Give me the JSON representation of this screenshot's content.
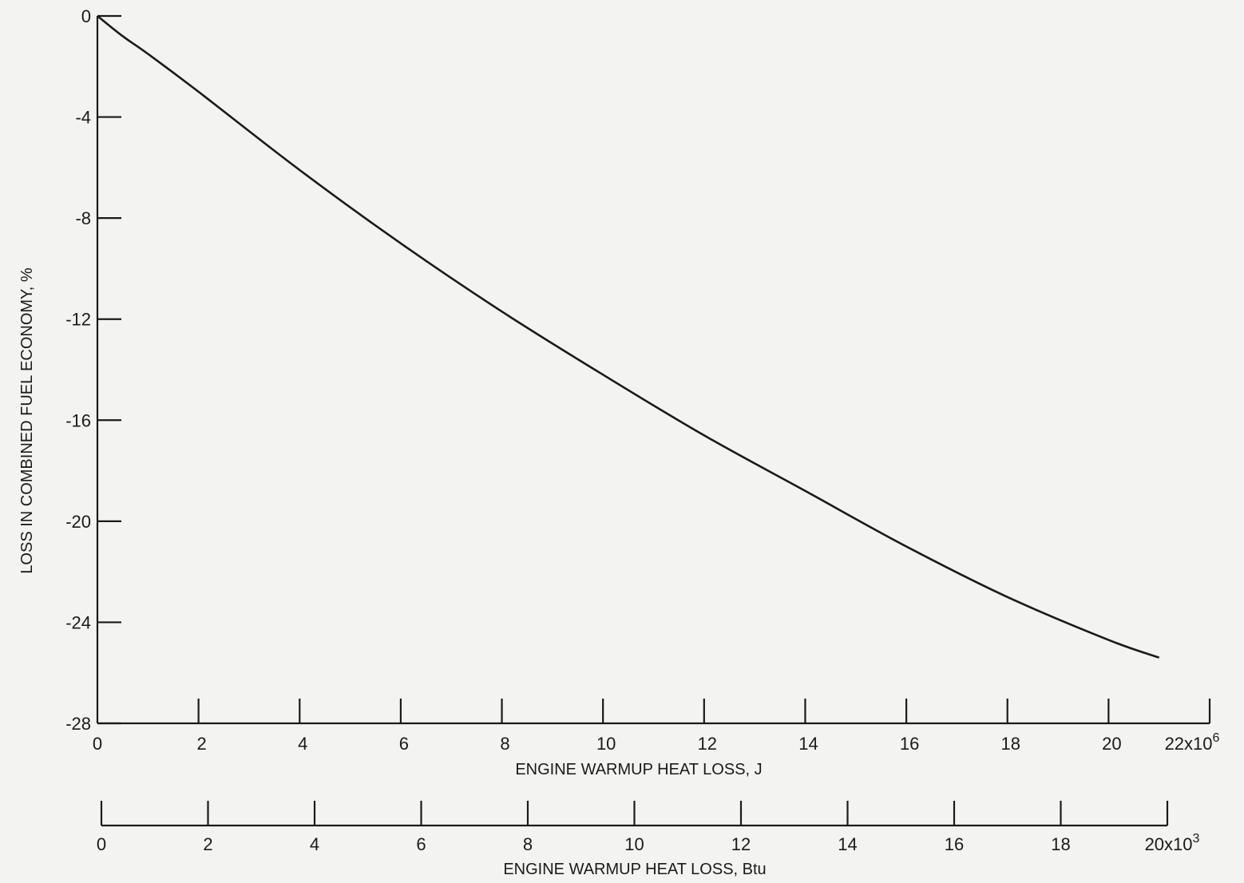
{
  "chart_data": {
    "type": "line",
    "title": "",
    "ylabel": "LOSS IN COMBINED FUEL ECONOMY, %",
    "ylim": [
      -28,
      0
    ],
    "yticks": [
      "0",
      "-4",
      "-8",
      "-12",
      "-16",
      "-20",
      "-24",
      "-28"
    ],
    "x_axes": [
      {
        "label": "ENGINE WARMUP HEAT LOSS,  J",
        "range": [
          0,
          22
        ],
        "multiplier": "x10",
        "multiplier_exp": "6",
        "ticks": [
          "0",
          "2",
          "4",
          "6",
          "8",
          "10",
          "12",
          "14",
          "16",
          "18",
          "20",
          "22"
        ]
      },
      {
        "label": "ENGINE WARMUP HEAT LOSS,  Btu",
        "range": [
          0,
          20
        ],
        "multiplier": "x10",
        "multiplier_exp": "3",
        "ticks": [
          "0",
          "2",
          "4",
          "6",
          "8",
          "10",
          "12",
          "14",
          "16",
          "18",
          "20"
        ]
      }
    ],
    "series": [
      {
        "x": [
          0,
          0.5,
          1,
          2,
          4,
          6,
          8,
          10,
          12,
          14,
          16,
          18,
          20,
          21
        ],
        "y": [
          0,
          -0.8,
          -1.5,
          -3.0,
          -6.1,
          -9.0,
          -11.7,
          -14.2,
          -16.6,
          -18.8,
          -21.0,
          -23.0,
          -24.7,
          -25.4
        ]
      }
    ],
    "grid": false,
    "legend": "none"
  }
}
